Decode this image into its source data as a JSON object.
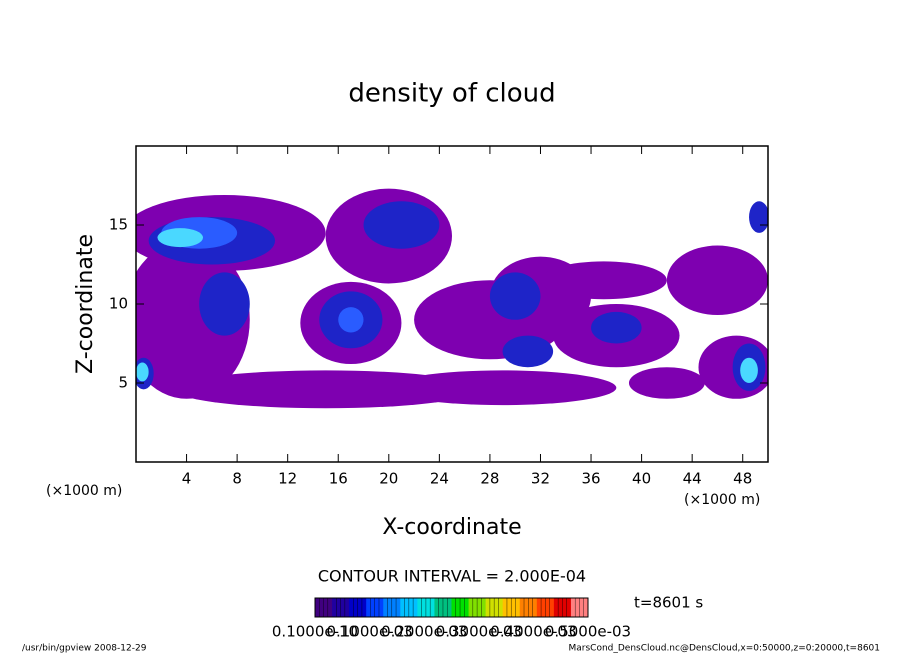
{
  "chart_data": {
    "type": "contour",
    "title": "density of cloud",
    "xlabel": "X-coordinate",
    "ylabel": "Z-coordinate",
    "x_unit": "(×1000 m)",
    "y_unit": "(×1000 m)",
    "xlim": [
      0,
      50
    ],
    "ylim": [
      0,
      20
    ],
    "xticks": [
      4,
      8,
      12,
      16,
      20,
      24,
      28,
      32,
      36,
      40,
      44,
      48
    ],
    "yticks": [
      5,
      10,
      15
    ],
    "level_colors": [
      "#7e00b0",
      "#1e24c8",
      "#2a5cff",
      "#4ad8ff"
    ],
    "regions": [
      {
        "x": 7,
        "z": 14.5,
        "rx": 8,
        "rz": 2.4,
        "level": 0
      },
      {
        "x": 4,
        "z": 9,
        "rx": 5,
        "rz": 5,
        "level": 0
      },
      {
        "x": 15,
        "z": 4.6,
        "rx": 12,
        "rz": 1.2,
        "level": 0
      },
      {
        "x": 29,
        "z": 4.7,
        "rx": 9,
        "rz": 1.1,
        "level": 0
      },
      {
        "x": 20,
        "z": 14.3,
        "rx": 5,
        "rz": 3,
        "level": 0
      },
      {
        "x": 28,
        "z": 9,
        "rx": 6,
        "rz": 2.5,
        "level": 0
      },
      {
        "x": 32,
        "z": 10.5,
        "rx": 4,
        "rz": 2.5,
        "level": 0
      },
      {
        "x": 38,
        "z": 8,
        "rx": 5,
        "rz": 2,
        "level": 0
      },
      {
        "x": 46,
        "z": 11.5,
        "rx": 4,
        "rz": 2.2,
        "level": 0
      },
      {
        "x": 47.5,
        "z": 6,
        "rx": 3,
        "rz": 2,
        "level": 0
      },
      {
        "x": 37,
        "z": 11.5,
        "rx": 5,
        "rz": 1.2,
        "level": 0
      },
      {
        "x": 17,
        "z": 8.8,
        "rx": 4,
        "rz": 2.6,
        "level": 0
      },
      {
        "x": 42,
        "z": 5,
        "rx": 3,
        "rz": 1,
        "level": 0
      },
      {
        "x": 6,
        "z": 14,
        "rx": 5,
        "rz": 1.5,
        "level": 1
      },
      {
        "x": 7,
        "z": 10,
        "rx": 2,
        "rz": 2,
        "level": 1
      },
      {
        "x": 17,
        "z": 9,
        "rx": 2.5,
        "rz": 1.8,
        "level": 1
      },
      {
        "x": 21,
        "z": 15,
        "rx": 3,
        "rz": 1.5,
        "level": 1
      },
      {
        "x": 30,
        "z": 10.5,
        "rx": 2,
        "rz": 1.5,
        "level": 1
      },
      {
        "x": 31,
        "z": 7,
        "rx": 2,
        "rz": 1,
        "level": 1
      },
      {
        "x": 38,
        "z": 8.5,
        "rx": 2,
        "rz": 1,
        "level": 1
      },
      {
        "x": 48.5,
        "z": 6,
        "rx": 1.3,
        "rz": 1.5,
        "level": 1
      },
      {
        "x": 49.3,
        "z": 15.5,
        "rx": 0.8,
        "rz": 1,
        "level": 1
      },
      {
        "x": 0.6,
        "z": 5.6,
        "rx": 0.8,
        "rz": 1,
        "level": 1
      },
      {
        "x": 5,
        "z": 14.5,
        "rx": 3,
        "rz": 1,
        "level": 2
      },
      {
        "x": 17,
        "z": 9,
        "rx": 1,
        "rz": 0.8,
        "level": 2
      },
      {
        "x": 3.5,
        "z": 14.2,
        "rx": 1.8,
        "rz": 0.6,
        "level": 3
      },
      {
        "x": 48.5,
        "z": 5.8,
        "rx": 0.7,
        "rz": 0.8,
        "level": 3
      },
      {
        "x": 0.5,
        "z": 5.7,
        "rx": 0.5,
        "rz": 0.6,
        "level": 3
      }
    ],
    "contour_interval": "CONTOUR INTERVAL = 2.000E-04",
    "time_label": "t=8601 s",
    "colorbar_colors": [
      "#400080",
      "#2000a0",
      "#0000c8",
      "#0040ff",
      "#0080ff",
      "#00c0ff",
      "#00e0e0",
      "#00c080",
      "#00e000",
      "#80e000",
      "#d0e000",
      "#ffc000",
      "#ff8000",
      "#ff4000",
      "#e00000",
      "#ff8080"
    ],
    "colorbar_labels": [
      "0.1000e-10",
      "0.1000e-03",
      "0.2000e-03",
      "0.3000e-03",
      "0.4000e-03",
      "0.5000e-03"
    ],
    "footer_left": "/usr/bin/gpview  2008-12-29",
    "footer_right": "MarsCond_DensCloud.nc@DensCloud,x=0:50000,z=0:20000,t=8601"
  }
}
